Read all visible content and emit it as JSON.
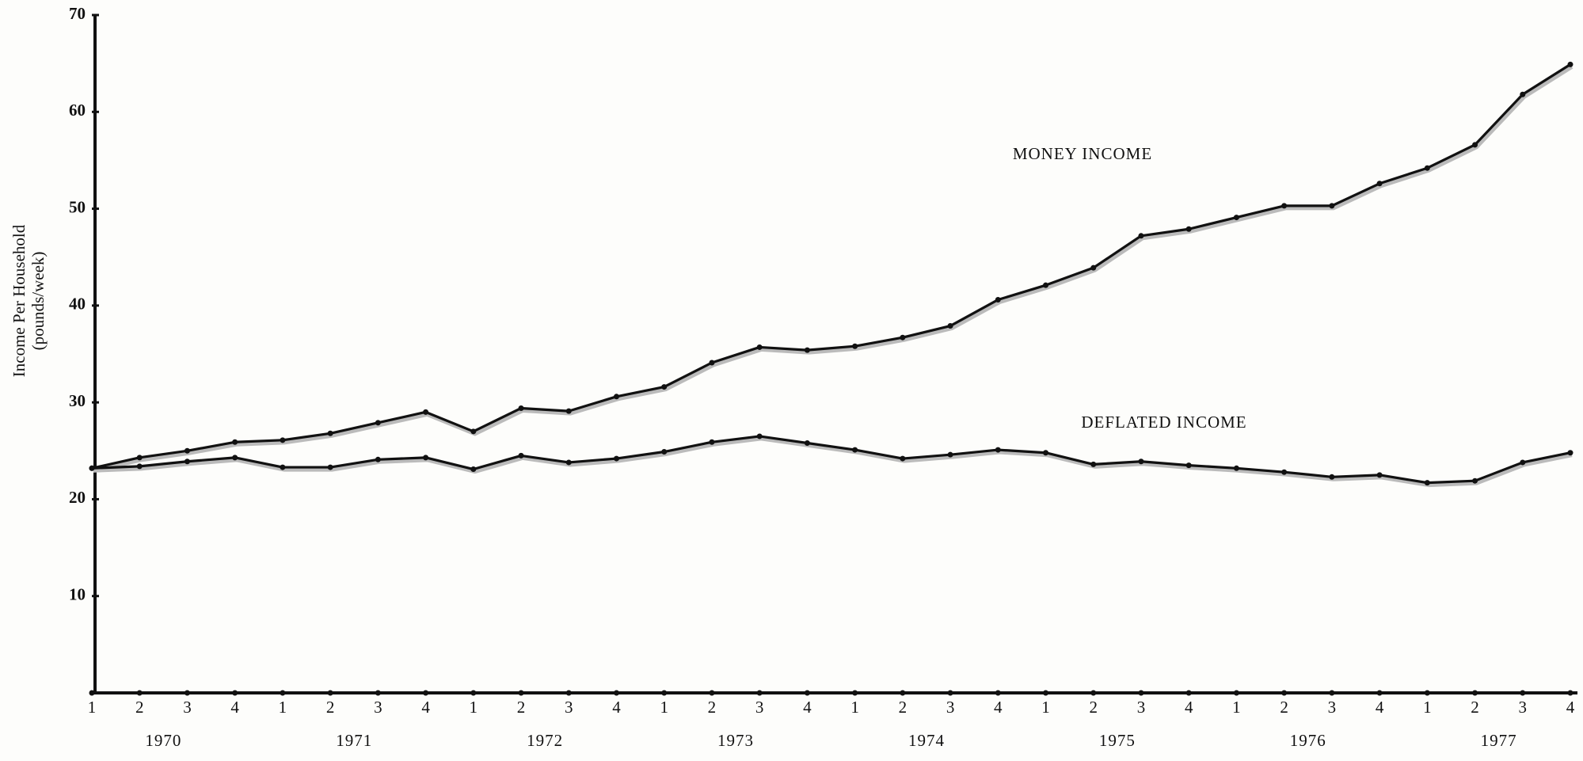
{
  "chart_data": {
    "type": "line",
    "y_label": [
      "Income Per Household",
      "(pounds/week)"
    ],
    "categories": [
      "1",
      "2",
      "3",
      "4",
      "1",
      "2",
      "3",
      "4",
      "1",
      "2",
      "3",
      "4",
      "1",
      "2",
      "3",
      "4",
      "1",
      "2",
      "3",
      "4",
      "1",
      "2",
      "3",
      "4",
      "1",
      "2",
      "3",
      "4",
      "1",
      "2",
      "3",
      "4"
    ],
    "years": [
      "1970",
      "1971",
      "1972",
      "1973",
      "1974",
      "1975",
      "1976",
      "1977"
    ],
    "series": [
      {
        "name": "MONEY INCOME",
        "color": "#111111",
        "values": [
          23.2,
          24.3,
          25.0,
          25.9,
          26.1,
          26.8,
          27.9,
          29.0,
          27.0,
          29.4,
          29.1,
          30.6,
          31.6,
          34.1,
          35.7,
          35.4,
          35.8,
          36.7,
          37.9,
          40.6,
          42.1,
          43.9,
          47.2,
          47.9,
          49.1,
          50.3,
          50.3,
          52.6,
          54.2,
          56.6,
          61.8,
          64.9
        ]
      },
      {
        "name": "DEFLATED INCOME",
        "color": "#111111",
        "values": [
          23.2,
          23.4,
          23.9,
          24.3,
          23.3,
          23.3,
          24.1,
          24.3,
          23.1,
          24.5,
          23.8,
          24.2,
          24.9,
          25.9,
          26.5,
          25.8,
          25.1,
          24.2,
          24.6,
          25.1,
          24.8,
          23.6,
          23.9,
          23.5,
          23.2,
          22.8,
          22.3,
          22.5,
          21.7,
          21.9,
          23.8,
          24.8
        ]
      }
    ],
    "ylim": [
      0,
      70
    ],
    "yticks": [
      10,
      20,
      30,
      40,
      50,
      60,
      70
    ],
    "grid": false,
    "legend": "inline"
  }
}
